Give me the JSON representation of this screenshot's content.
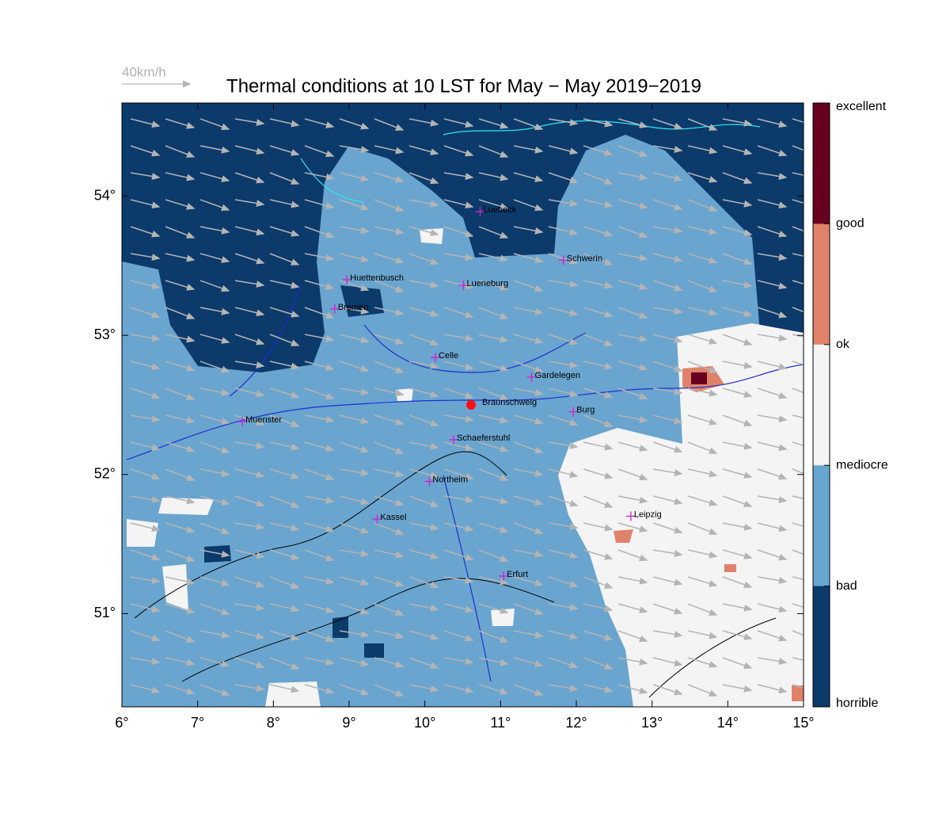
{
  "title": "Thermal conditions at 10 LST for May − May  2019−2019",
  "wind_scale": "40km/h",
  "map": {
    "xlim": [
      6,
      15
    ],
    "ylim": [
      50.33,
      54.67
    ],
    "xticks": [
      {
        "value": 6,
        "label": "6°"
      },
      {
        "value": 7,
        "label": "7°"
      },
      {
        "value": 8,
        "label": "8°"
      },
      {
        "value": 9,
        "label": "9°"
      },
      {
        "value": 10,
        "label": "10°"
      },
      {
        "value": 11,
        "label": "11°"
      },
      {
        "value": 12,
        "label": "12°"
      },
      {
        "value": 13,
        "label": "13°"
      },
      {
        "value": 14,
        "label": "14°"
      },
      {
        "value": 15,
        "label": "15°"
      }
    ],
    "yticks": [
      {
        "value": 51,
        "label": "51°"
      },
      {
        "value": 52,
        "label": "52°"
      },
      {
        "value": 53,
        "label": "53°"
      },
      {
        "value": 54,
        "label": "54°"
      }
    ]
  },
  "cities": [
    {
      "name": "Luebeck",
      "lon": 10.73,
      "lat": 53.89
    },
    {
      "name": "Schwerin",
      "lon": 11.83,
      "lat": 53.54
    },
    {
      "name": "Huettenbusch",
      "lon": 8.97,
      "lat": 53.4
    },
    {
      "name": "Lueneburg",
      "lon": 10.51,
      "lat": 53.36
    },
    {
      "name": "Bremen",
      "lon": 8.81,
      "lat": 53.19
    },
    {
      "name": "Celle",
      "lon": 10.14,
      "lat": 52.84
    },
    {
      "name": "Gardelegen",
      "lon": 11.41,
      "lat": 52.7
    },
    {
      "name": "Burg",
      "lon": 11.96,
      "lat": 52.45
    },
    {
      "name": "Muenster",
      "lon": 7.59,
      "lat": 52.38
    },
    {
      "name": "Schaeferstuhl",
      "lon": 10.38,
      "lat": 52.25
    },
    {
      "name": "Northeim",
      "lon": 10.06,
      "lat": 51.95
    },
    {
      "name": "Kassel",
      "lon": 9.37,
      "lat": 51.68
    },
    {
      "name": "Leipzig",
      "lon": 12.72,
      "lat": 51.7
    },
    {
      "name": "Erfurt",
      "lon": 11.04,
      "lat": 51.27
    }
  ],
  "site": {
    "name": "Braunschweig",
    "lon": 10.61,
    "lat": 52.5
  },
  "colorbar": {
    "labels": [
      "excellent",
      "good",
      "ok",
      "mediocre",
      "bad",
      "horrible"
    ],
    "colors": [
      "#67001f",
      "#e0826a",
      "#f4f4f4",
      "#67a6d0",
      "#0b3a6b"
    ]
  }
}
